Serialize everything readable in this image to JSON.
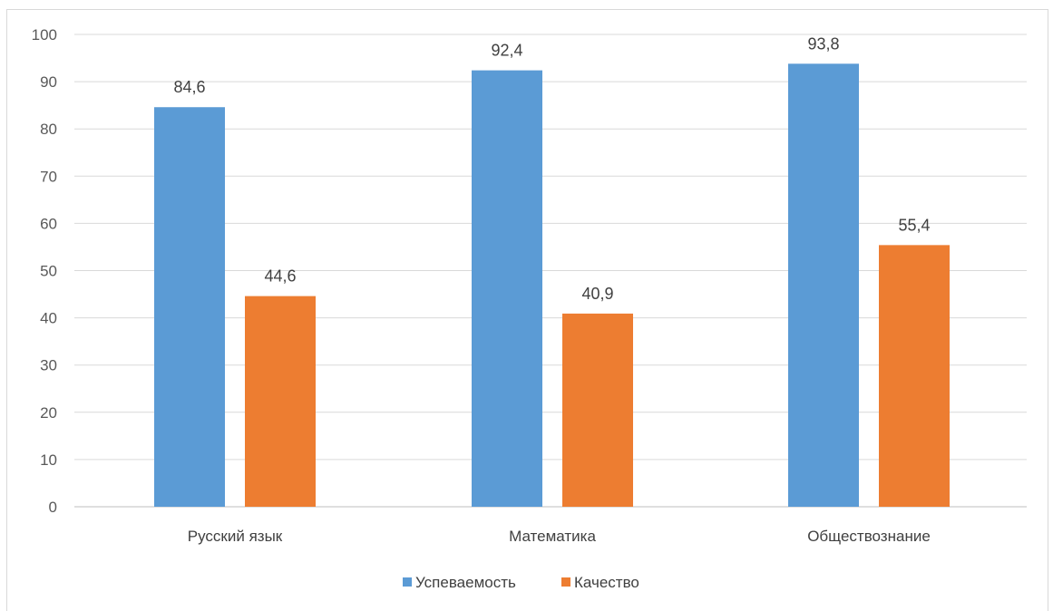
{
  "chart_data": {
    "type": "bar",
    "categories": [
      "Русский язык",
      "Математика",
      "Обществознание"
    ],
    "series": [
      {
        "name": "Успеваемость",
        "values": [
          84.6,
          92.4,
          93.8
        ],
        "labels": [
          "84,6",
          "92,4",
          "93,8"
        ],
        "color": "#5b9bd5"
      },
      {
        "name": "Качество",
        "values": [
          44.6,
          40.9,
          55.4
        ],
        "labels": [
          "44,6",
          "40,9",
          "55,4"
        ],
        "color": "#ed7d31"
      }
    ],
    "ylim": [
      0,
      100
    ],
    "yticks": [
      0,
      10,
      20,
      30,
      40,
      50,
      60,
      70,
      80,
      90,
      100
    ],
    "grid": true,
    "legend_position": "bottom",
    "gridline_color": "#d9d9d9",
    "axis_line_color": "#bfbfbf"
  }
}
